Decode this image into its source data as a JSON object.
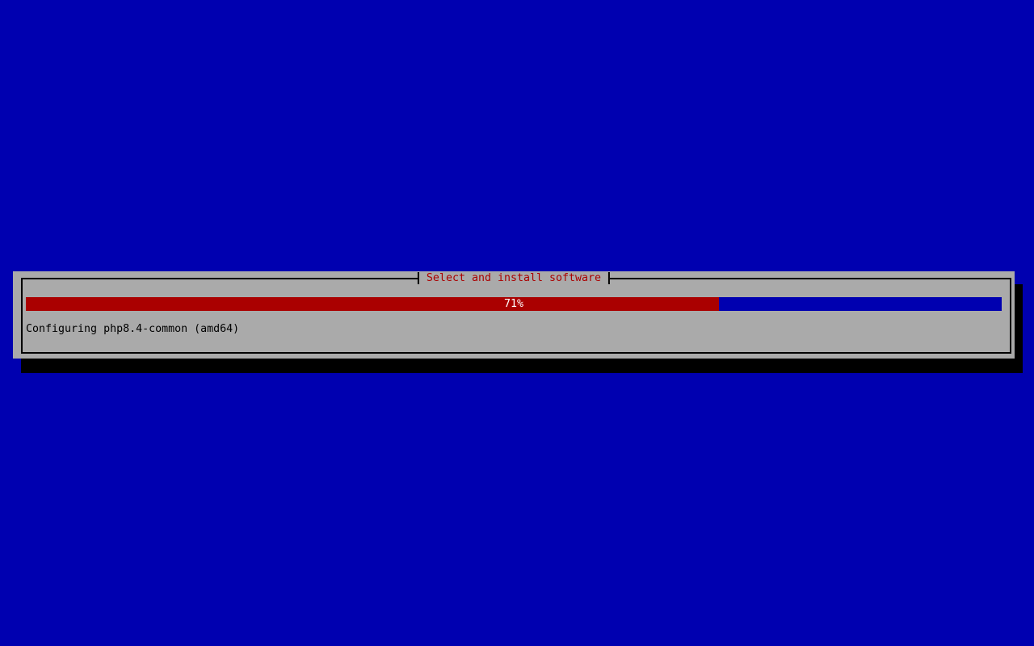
{
  "screen": {
    "background_color": "#0000B0"
  },
  "dialog": {
    "title": "Select and install software",
    "progress": {
      "percent": 71,
      "label": "71%"
    },
    "status_text": "Configuring php8.4-common (amd64)",
    "colors": {
      "surface": "#AAAAAA",
      "border": "#000000",
      "shadow": "#000000",
      "title_text": "#AA0000",
      "progress_fill": "#AA0000",
      "progress_trough": "#0000B0",
      "progress_text": "#FFFFFF",
      "status_text": "#000000"
    }
  }
}
